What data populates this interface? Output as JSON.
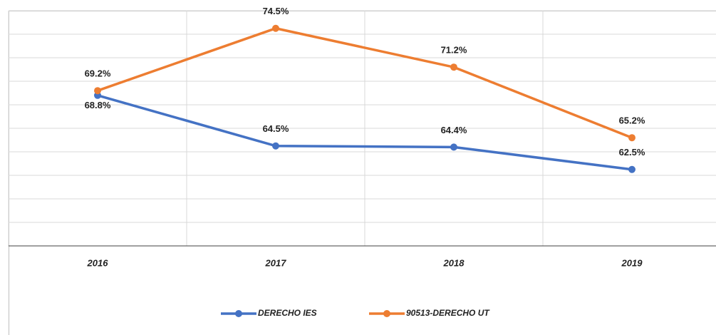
{
  "chart_data": {
    "type": "line",
    "categories": [
      "2016",
      "2017",
      "2018",
      "2019"
    ],
    "series": [
      {
        "name": "DERECHO IES",
        "color": "#4472c4",
        "values": [
          68.8,
          64.5,
          64.4,
          62.5
        ],
        "value_labels": [
          "68.8%",
          "64.5%",
          "64.4%",
          "62.5%"
        ]
      },
      {
        "name": "90513-DERECHO UT",
        "color": "#ed7d31",
        "values": [
          69.2,
          74.5,
          71.2,
          65.2
        ],
        "value_labels": [
          "69.2%",
          "74.5%",
          "71.2%",
          "65.2%"
        ]
      }
    ],
    "ylim": [
      56,
      76
    ],
    "yticks": [
      56,
      58,
      60,
      62,
      64,
      66,
      68,
      70,
      72,
      74,
      76
    ],
    "grid": true,
    "legend": "bottom"
  }
}
